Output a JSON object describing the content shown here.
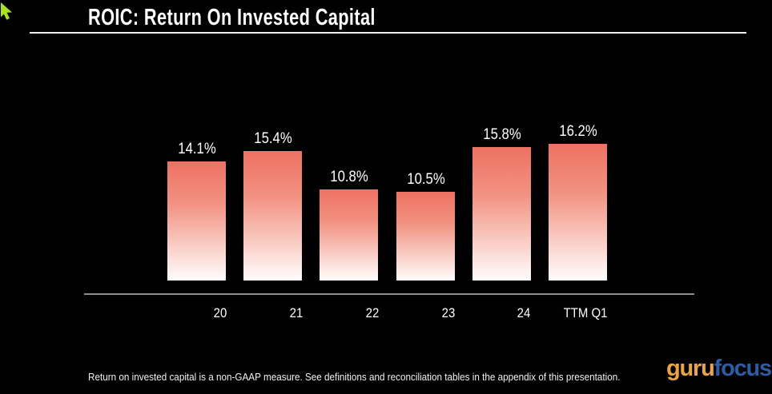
{
  "page": {
    "title": "ROIC: Return On Invested Capital",
    "footnote": "Return on invested capital is a non-GAAP measure. See definitions and reconciliation tables in the appendix of this presentation.",
    "logo": {
      "part1": "guru",
      "part2": "focus",
      "part1_color": "#eaa63c",
      "part2_color": "#2d5ca6"
    },
    "cursor_color": "#a9e218"
  },
  "chart_data": {
    "type": "bar",
    "title": "ROIC: Return On Invested Capital",
    "categories": [
      "20",
      "21",
      "22",
      "23",
      "24",
      "TTM Q1"
    ],
    "values": [
      14.1,
      15.4,
      10.8,
      10.5,
      15.8,
      16.2
    ],
    "labels": [
      "14.1%",
      "15.4%",
      "10.8%",
      "10.5%",
      "15.8%",
      "16.2%"
    ],
    "xlabel": "",
    "ylabel": "",
    "ylim": [
      0,
      17
    ],
    "grid": false,
    "legend": false,
    "background": "#010101",
    "bar_gradient_top": "#ee7164",
    "bar_gradient_mid": "#f29180",
    "bar_gradient_bottom": "#fffdfc",
    "axis_line_color": "#8d8d8d",
    "label_color": "#ffffff"
  }
}
